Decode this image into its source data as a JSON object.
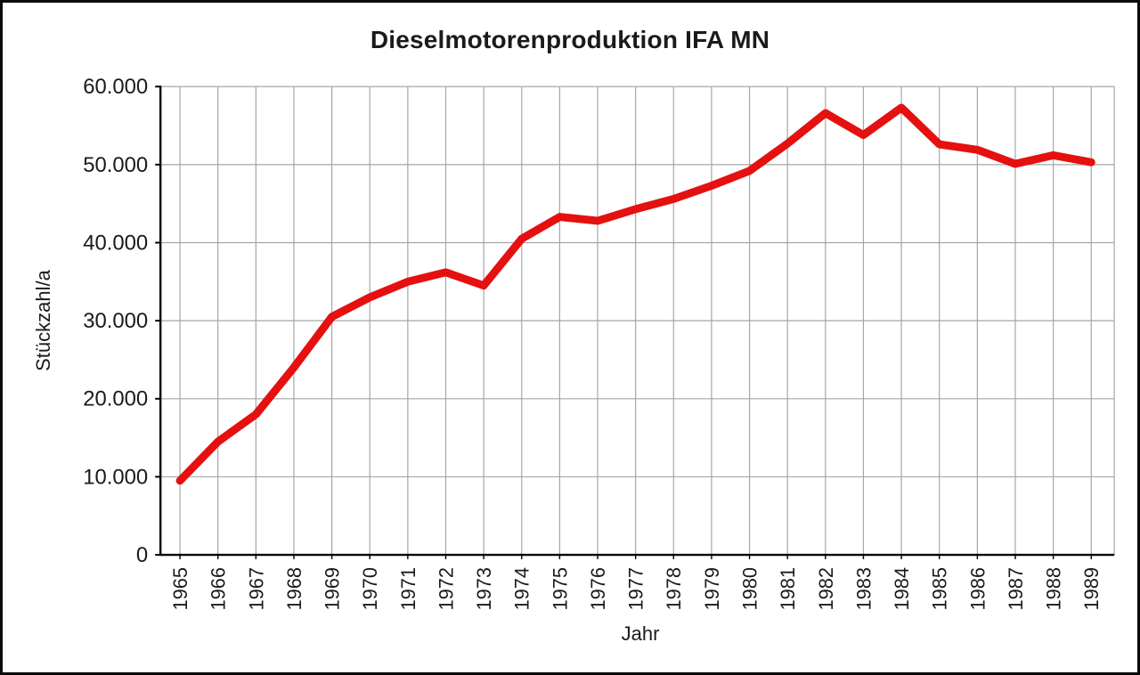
{
  "frame": {
    "background": "#ffffff",
    "border_color": "#0a0a0a"
  },
  "chart_data": {
    "type": "line",
    "title": "Dieselmotorenproduktion IFA MN",
    "xlabel": "Jahr",
    "ylabel": "Stückzahl/a",
    "x": [
      1965,
      1966,
      1967,
      1968,
      1969,
      1970,
      1971,
      1972,
      1973,
      1974,
      1975,
      1976,
      1977,
      1978,
      1979,
      1980,
      1981,
      1982,
      1983,
      1984,
      1985,
      1986,
      1987,
      1988,
      1989
    ],
    "series": [
      {
        "name": "Dieselmotorenproduktion IFA MN",
        "color": "#e51010",
        "values": [
          9500,
          14500,
          18000,
          24000,
          30500,
          33000,
          35000,
          36200,
          34500,
          40500,
          43300,
          42800,
          44300,
          45600,
          47300,
          49200,
          52700,
          56600,
          53800,
          57300,
          52600,
          51900,
          50100,
          51200,
          50300
        ]
      }
    ],
    "ylim": [
      0,
      60000
    ],
    "ytick_step": 10000,
    "ytick_labels": [
      "0",
      "10.000",
      "20.000",
      "30.000",
      "40.000",
      "50.000",
      "60.000"
    ],
    "grid": "both",
    "gridline_color": "#a6a6a6",
    "axis_color": "#000000",
    "legend": "none"
  }
}
